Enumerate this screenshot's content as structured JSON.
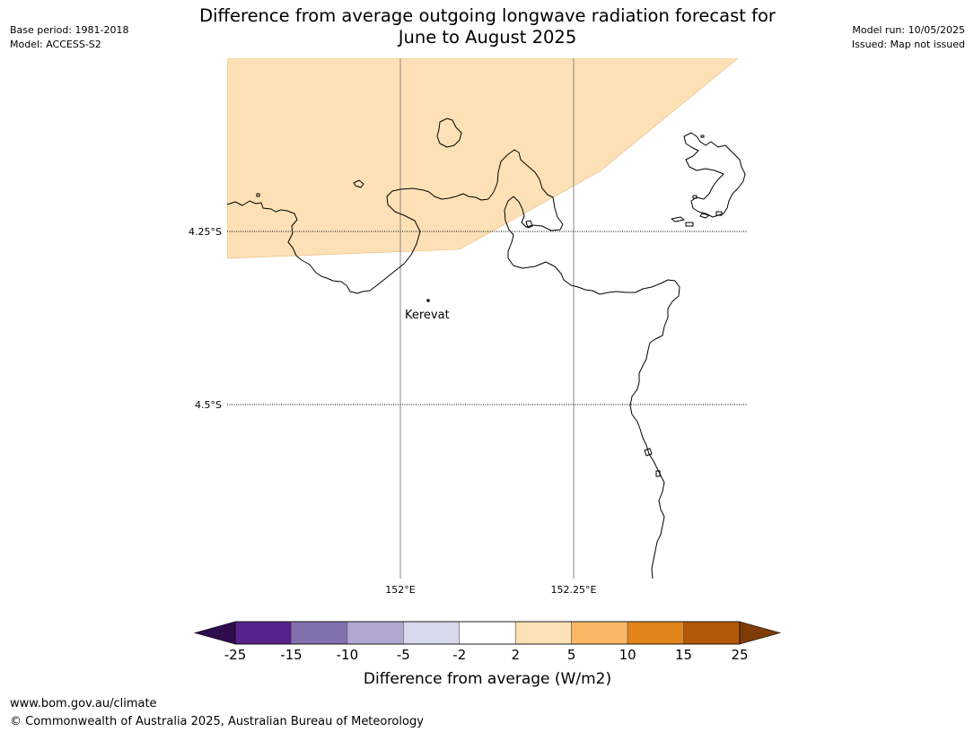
{
  "header": {
    "title_line1": "Difference from average outgoing longwave radiation forecast for",
    "title_line2": "June to August 2025",
    "base_period": "Base period: 1981-2018",
    "model": "Model: ACCESS-S2",
    "model_run": "Model run: 10/05/2025",
    "issued": "Issued: Map not issued"
  },
  "map": {
    "lat_labels": [
      "4.25°S",
      "4.5°S"
    ],
    "lon_labels": [
      "152°E",
      "152.25°E"
    ],
    "place_label": "Kerevat",
    "colors": {
      "anomaly_fill": "#fde0b6",
      "coastline": "#000000",
      "meridian": "#888888"
    }
  },
  "colorbar": {
    "label": "Difference from average (W/m2)",
    "ticks": [
      "-25",
      "-15",
      "-10",
      "-5",
      "-2",
      "2",
      "5",
      "10",
      "15",
      "25"
    ],
    "colors": [
      "#2e0d4e",
      "#58228c",
      "#8170ad",
      "#b0a8d1",
      "#d8d9ea",
      "#ffffff",
      "#fde0b6",
      "#fbb765",
      "#e2841a",
      "#b25806",
      "#7f3b08"
    ]
  },
  "footer": {
    "url": "www.bom.gov.au/climate",
    "copyright": "© Commonwealth of Australia 2025, Australian Bureau of Meteorology"
  }
}
